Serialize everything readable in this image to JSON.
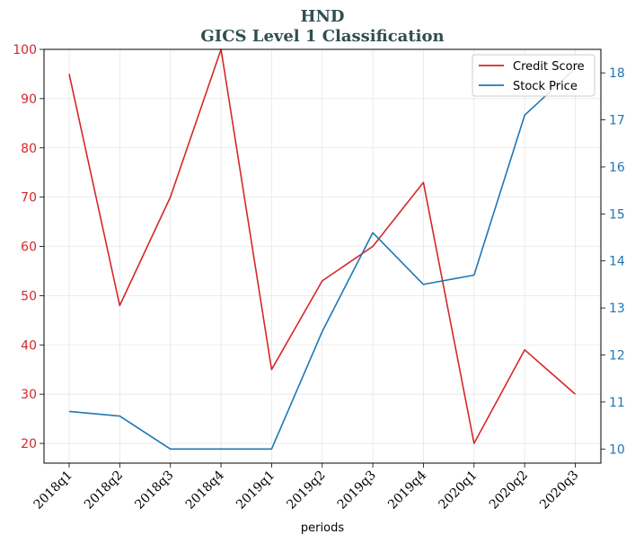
{
  "chart_data": {
    "type": "line",
    "title": "HND",
    "subtitle": "GICS Level 1 Classification",
    "xlabel": "periods",
    "categories": [
      "2018q1",
      "2018q2",
      "2018q3",
      "2018q4",
      "2019q1",
      "2019q2",
      "2019q3",
      "2019q4",
      "2020q1",
      "2020q2",
      "2020q3"
    ],
    "y_left": {
      "lim": [
        16,
        100
      ],
      "ticks": [
        "20",
        "30",
        "40",
        "50",
        "60",
        "70",
        "80",
        "90",
        "100"
      ],
      "color": "#d62728"
    },
    "y_right": {
      "lim": [
        9.7,
        18.5
      ],
      "ticks": [
        "10",
        "11",
        "12",
        "13",
        "14",
        "15",
        "16",
        "17",
        "18"
      ],
      "color": "#1f77b4"
    },
    "grid": true,
    "legend_position": "top-right",
    "series": [
      {
        "name": "Credit Score",
        "axis": "left",
        "color": "#d62728",
        "values": [
          95,
          48,
          70,
          100,
          35,
          53,
          60,
          73,
          20,
          39,
          30
        ]
      },
      {
        "name": "Stock Price",
        "axis": "right",
        "color": "#1f77b4",
        "values": [
          10.8,
          10.7,
          10.0,
          10.0,
          10.0,
          12.5,
          14.6,
          13.5,
          13.7,
          17.1,
          18.1
        ]
      }
    ]
  }
}
